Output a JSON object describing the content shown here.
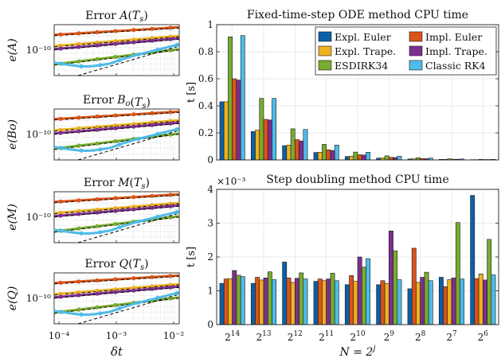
{
  "colors": {
    "expl_euler": "#0b60a8",
    "impl_euler": "#d9541a",
    "expl_trape": "#eeb120",
    "impl_trape": "#7d2f8e",
    "esdirk34": "#78ab30",
    "classic_rk4": "#4ebbe8",
    "reference_line": "#000000",
    "grid": "#e3e3e3"
  },
  "left_panels": {
    "x_axis_label": "δt",
    "x_tick_labels": [
      "10⁻⁴",
      "10⁻³",
      "10⁻²"
    ],
    "y_tick_label": "10⁻¹⁰",
    "panels": [
      {
        "title": "Error A(Ts)",
        "ylabel": "e(A)"
      },
      {
        "title": "Error Bo(Ts)",
        "ylabel": "e(Bo)"
      },
      {
        "title": "Error M(Ts)",
        "ylabel": "e(M)"
      },
      {
        "title": "Error Q(Ts)",
        "ylabel": "e(Q)"
      }
    ]
  },
  "chart_data": [
    {
      "type": "bar",
      "title": "Fixed-time-step ODE method CPU time",
      "ylabel": "t [s]",
      "ylim": [
        0,
        1
      ],
      "yticks": [
        "0",
        "0.2",
        "0.4",
        "0.6",
        "0.8",
        "1"
      ],
      "grid": true,
      "legend_position": "top-right",
      "legend_columns": 2,
      "categories": [
        "2^14",
        "2^13",
        "2^12",
        "2^11",
        "2^10",
        "2^9",
        "2^8",
        "2^7",
        "2^6"
      ],
      "series": [
        {
          "name": "Expl. Euler",
          "color": "#0b60a8",
          "values": [
            0.43,
            0.21,
            0.105,
            0.055,
            0.025,
            0.013,
            0.007,
            0.004,
            0.002
          ]
        },
        {
          "name": "Expl. Trape.",
          "color": "#eeb120",
          "values": [
            0.43,
            0.22,
            0.11,
            0.057,
            0.028,
            0.015,
            0.008,
            0.004,
            0.002
          ]
        },
        {
          "name": "ESDIRK34",
          "color": "#78ab30",
          "values": [
            0.91,
            0.455,
            0.23,
            0.115,
            0.058,
            0.03,
            0.016,
            0.008,
            0.004
          ]
        },
        {
          "name": "Impl. Euler",
          "color": "#d9541a",
          "values": [
            0.6,
            0.3,
            0.15,
            0.075,
            0.038,
            0.019,
            0.01,
            0.005,
            0.003
          ]
        },
        {
          "name": "Impl. Trape.",
          "color": "#7d2f8e",
          "values": [
            0.59,
            0.295,
            0.14,
            0.07,
            0.036,
            0.018,
            0.009,
            0.005,
            0.003
          ]
        },
        {
          "name": "Classic RK4",
          "color": "#4ebbe8",
          "values": [
            0.92,
            0.455,
            0.225,
            0.11,
            0.057,
            0.028,
            0.014,
            0.007,
            0.004
          ]
        }
      ]
    },
    {
      "type": "bar",
      "title": "Step doubling method CPU time",
      "ylabel": "t [s]",
      "y_scale_label": "×10⁻³",
      "ylim": [
        0,
        4
      ],
      "yticks": [
        "0",
        "1",
        "2",
        "3",
        "4"
      ],
      "grid": true,
      "xlabel": "N = 2^j",
      "categories": [
        "2^14",
        "2^13",
        "2^12",
        "2^11",
        "2^10",
        "2^9",
        "2^8",
        "2^7",
        "2^6"
      ],
      "series": [
        {
          "name": "Expl. Euler",
          "color": "#0b60a8",
          "values": [
            1.22,
            1.22,
            1.85,
            1.28,
            1.18,
            1.18,
            1.06,
            1.4,
            3.82
          ]
        },
        {
          "name": "Impl. Euler",
          "color": "#d9541a",
          "values": [
            1.35,
            1.4,
            1.38,
            1.35,
            1.45,
            1.3,
            2.26,
            1.12,
            1.36
          ]
        },
        {
          "name": "Expl. Trape.",
          "color": "#eeb120",
          "values": [
            1.36,
            1.32,
            1.25,
            1.3,
            1.28,
            1.22,
            1.25,
            1.33,
            1.5
          ]
        },
        {
          "name": "Impl. Trape.",
          "color": "#7d2f8e",
          "values": [
            1.6,
            1.38,
            1.37,
            1.35,
            2.0,
            2.77,
            1.4,
            1.38,
            1.32
          ]
        },
        {
          "name": "ESDIRK34",
          "color": "#78ab30",
          "values": [
            1.46,
            1.56,
            1.53,
            1.52,
            1.7,
            2.18,
            1.55,
            3.02,
            2.52
          ]
        },
        {
          "name": "Classic RK4",
          "color": "#4ebbe8",
          "values": [
            1.42,
            1.33,
            1.35,
            1.3,
            1.95,
            1.33,
            1.3,
            1.35,
            1.47
          ]
        }
      ]
    }
  ]
}
